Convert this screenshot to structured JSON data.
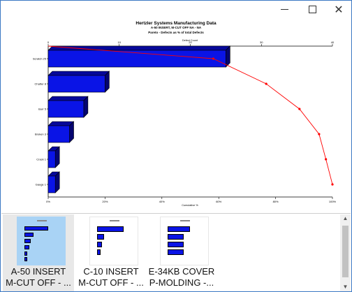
{
  "window": {
    "minimize_icon": "minimize-icon",
    "maximize_icon": "maximize-icon",
    "close_icon": "close-icon"
  },
  "chart_data": {
    "type": "bar",
    "title": "Hertzler Systems Manufacturing Data",
    "subtitle": "A-50 INSERT, M-CUT OFF   NA - NA",
    "subtitle2": "Pareto - Defects as % of total Defects",
    "top_axis_label": "Defect Count",
    "bottom_axis_label": "Cumulative %",
    "categories": [
      "Scratch  25",
      "Chatter  8",
      "Burr  5",
      "Broken  3",
      "Crack  1",
      "Gauge  1"
    ],
    "values": [
      25,
      8,
      5,
      3,
      1,
      1
    ],
    "cumulative_percent": [
      58.1,
      76.7,
      88.4,
      95.3,
      97.7,
      100
    ],
    "top_ticks": [
      "0",
      "10",
      "20",
      "30",
      "40"
    ],
    "bottom_ticks": [
      "0%",
      "20%",
      "40%",
      "60%",
      "80%",
      "100%"
    ],
    "xlim_count": [
      0,
      40
    ],
    "xlim_percent": [
      0,
      100
    ],
    "bar_color": "#0a14e6",
    "line_color": "#ff0000"
  },
  "thumbnails": [
    {
      "caption_line1": "A-50 INSERT",
      "caption_line2": "M-CUT OFF - ...",
      "selected": true
    },
    {
      "caption_line1": "C-10 INSERT",
      "caption_line2": "M-CUT OFF - ...",
      "selected": false
    },
    {
      "caption_line1": "E-34KB COVER",
      "caption_line2": "P-MOLDING -...",
      "selected": false
    }
  ]
}
